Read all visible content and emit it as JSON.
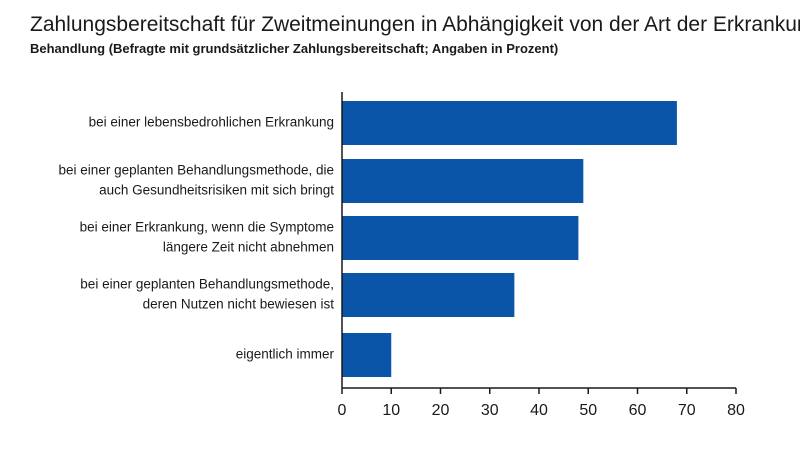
{
  "chart_data": {
    "type": "bar",
    "orientation": "horizontal",
    "title": "Zahlungsbereitschaft für Zweitmeinungen in Abhängigkeit von der Art der Erkrankung/",
    "subtitle": "Behandlung (Befragte mit grundsätzlicher Zahlungsbereitschaft; Angaben in Prozent)",
    "categories": [
      [
        "bei einer lebensbedrohlichen Erkrankung"
      ],
      [
        "bei einer geplanten Behandlungsmethode, die",
        "auch Gesundheitsrisiken mit sich bringt"
      ],
      [
        "bei einer Erkrankung, wenn die Symptome",
        "längere Zeit nicht abnehmen"
      ],
      [
        "bei einer geplanten Behandlungsmethode,",
        "deren Nutzen nicht bewiesen ist"
      ],
      [
        "eigentlich immer"
      ]
    ],
    "values": [
      68,
      49,
      48,
      35,
      10
    ],
    "xlim": [
      0,
      80
    ],
    "xticks": [
      "0",
      "10",
      "20",
      "30",
      "40",
      "50",
      "60",
      "70",
      "80"
    ],
    "xlabel": "",
    "ylabel": "",
    "grid": false,
    "colors": {
      "bar": "#0b55a8",
      "axis": "#1a1a1a"
    }
  }
}
